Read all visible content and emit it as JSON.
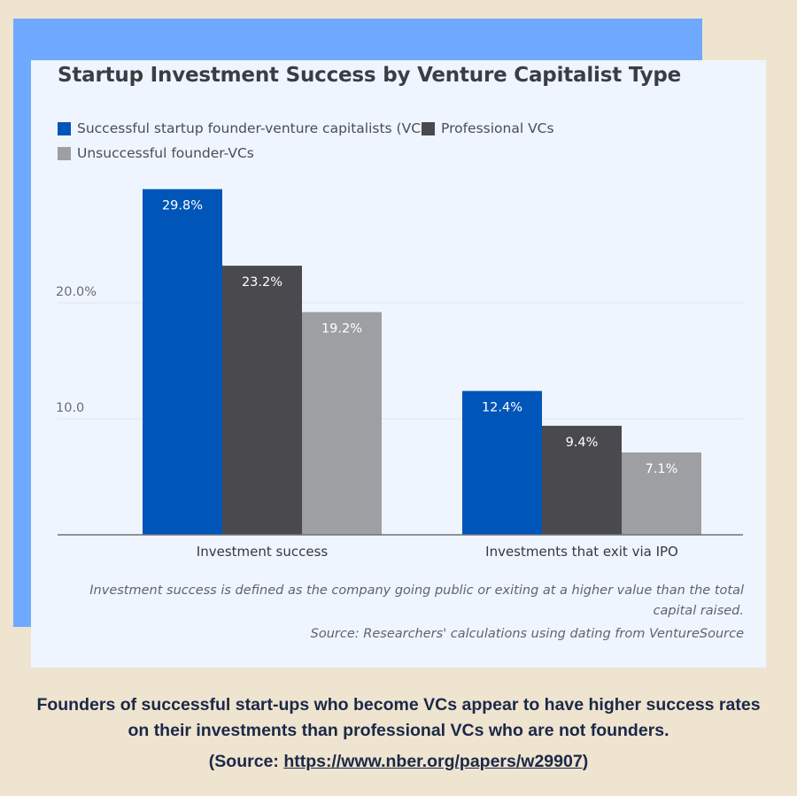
{
  "colors": {
    "page_background": "#eee4cf",
    "accent_block": "#6ea8ff",
    "card_background": "#eff5fe",
    "caption_text": "#1c2848"
  },
  "chart_data": {
    "type": "bar",
    "title": "Startup Investment Success by Venture Capitalist Type",
    "categories": [
      "Investment success",
      "Investments that exit via IPO"
    ],
    "series": [
      {
        "name": "Successful startup founder-venture capitalists (VCs)",
        "values": [
          29.8,
          12.4
        ],
        "labels": [
          "29.8%",
          "12.4%"
        ],
        "color": "#0055b8"
      },
      {
        "name": "Professional VCs",
        "values": [
          23.2,
          9.4
        ],
        "labels": [
          "23.2%",
          "9.4%"
        ],
        "color": "#4a4a4e"
      },
      {
        "name": "Unsuccessful founder-VCs",
        "values": [
          19.2,
          7.1
        ],
        "labels": [
          "19.2%",
          "7.1%"
        ],
        "color": "#9e9fa3"
      }
    ],
    "yticks": [
      {
        "value": 10,
        "label": "10.0"
      },
      {
        "value": 20,
        "label": "20.0%"
      }
    ],
    "ylim": [
      0,
      30
    ],
    "grid": true,
    "legend_position": "top-left",
    "footnote": "Investment success is defined as the company going public or exiting at a higher value than the total capital raised.",
    "source": "Source: Researchers' calculations using dating from VentureSource"
  },
  "caption": {
    "text": "Founders of successful start-ups who become VCs appear to have higher success rates on their investments than professional VCs who are not founders.",
    "source_prefix": "(Source: ",
    "source_link": "https://www.nber.org/papers/w29907",
    "source_suffix": ")"
  }
}
